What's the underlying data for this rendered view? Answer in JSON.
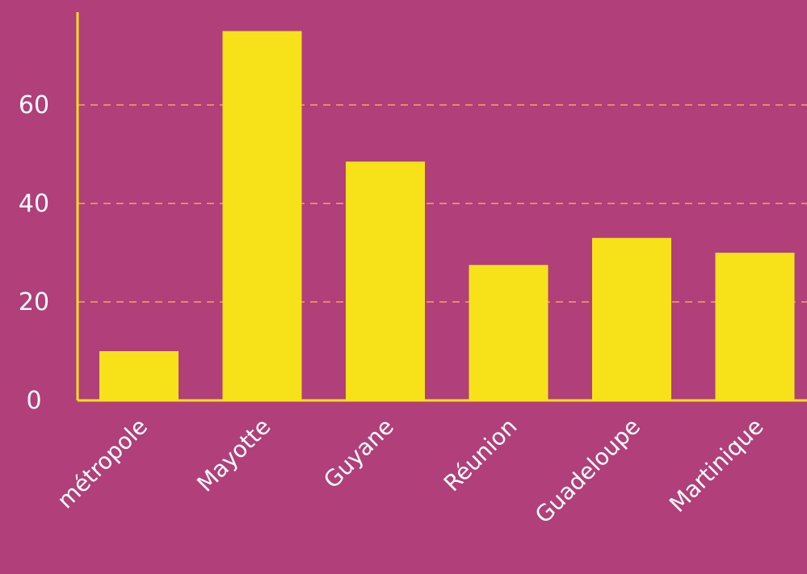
{
  "chart_data": {
    "type": "bar",
    "categories": [
      "métropole",
      "Mayotte",
      "Guyane",
      "Réunion",
      "Guadeloupe",
      "Martinique"
    ],
    "values": [
      10,
      75,
      48.5,
      27.5,
      33,
      30
    ],
    "title": "",
    "xlabel": "",
    "ylabel": "",
    "ylim": [
      0,
      75
    ],
    "yticks": [
      "0",
      "20",
      "40",
      "60"
    ],
    "grid": "horizontal dashed",
    "colors": {
      "background": "#b03f7a",
      "bar": "#f7e21a",
      "axis": "#f7e21a",
      "grid": "#e58a6a",
      "text": "#ffffff"
    }
  }
}
